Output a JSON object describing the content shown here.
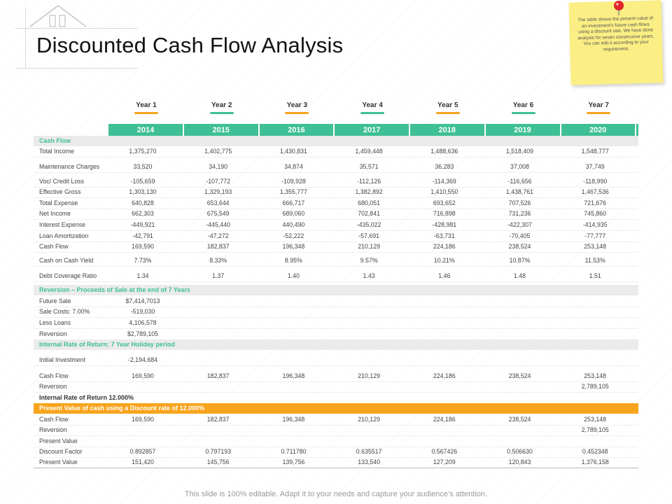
{
  "title": "Discounted Cash Flow Analysis",
  "note": "The table shows the present value of an investment's future cash flows using a discount rate. We have done analysis for seven consecutive years. You can edit it according to your requirement.",
  "accent": {
    "green": "#3ebf95",
    "orange": "#f7a41d",
    "teal": "#3ebf95"
  },
  "years": [
    {
      "label": "Year 1",
      "color": "#f7a41d"
    },
    {
      "label": "Year 2",
      "color": "#3ebf95"
    },
    {
      "label": "Year 3",
      "color": "#f7a41d"
    },
    {
      "label": "Year 4",
      "color": "#3ebf95"
    },
    {
      "label": "Year 5",
      "color": "#f7a41d"
    },
    {
      "label": "Year 6",
      "color": "#3ebf95"
    },
    {
      "label": "Year 7",
      "color": "#f7a41d"
    }
  ],
  "calendar_years": [
    "2014",
    "2015",
    "2016",
    "2017",
    "2018",
    "2019",
    "2020"
  ],
  "cash_flow_title": "Cash Flow",
  "cash_flow_rows": [
    {
      "label": "Total Income",
      "values": [
        "1,375,270",
        "1,402,775",
        "1,430,831",
        "1,459,448",
        "1,488,636",
        "1,518,409",
        "1,548,777"
      ]
    },
    {
      "label": "Maintenance Charges",
      "values": [
        "33,520",
        "34,190",
        "34,874",
        "35,571",
        "36,283",
        "37,008",
        "37,749"
      ]
    },
    {
      "label": "Voc/ Credit Loss",
      "values": [
        "-105,659",
        "-107,772",
        "-109,928",
        "-112,126",
        "-114,369",
        "-116,656",
        "-118,990"
      ]
    },
    {
      "label": "Effective Gross",
      "values": [
        "1,303,130",
        "1,329,193",
        "1,355,777",
        "1,382,892",
        "1,410,550",
        "1,438,761",
        "1,467,536"
      ]
    },
    {
      "label": "Total Expense",
      "values": [
        "640,828",
        "653,644",
        "666,717",
        "680,051",
        "693,652",
        "707,526",
        "721,676"
      ]
    },
    {
      "label": "Net Income",
      "values": [
        "662,303",
        "675,549",
        "689,060",
        "702,841",
        "716,898",
        "731,236",
        "745,860"
      ]
    },
    {
      "label": "Interest Expense",
      "values": [
        "-449,921",
        "-445,440",
        "440,490",
        "-435,022",
        "-428,981",
        "-422,307",
        "-414,935"
      ]
    },
    {
      "label": "Loan Amortization",
      "values": [
        "-42,791",
        "-47,272",
        "-52,222",
        "-57,691",
        "-63,731",
        "-70,405",
        "-77,777"
      ]
    },
    {
      "label": "Cash Flow",
      "values": [
        "169,590",
        "182,837",
        "196,348",
        "210,129",
        "224,186",
        "238,524",
        "253,148"
      ]
    },
    {
      "label": "Cash on Cash Yield",
      "values": [
        "7.73%",
        "8.33%",
        "8.95%",
        "9.57%",
        "10.21%",
        "10.87%",
        "11.53%"
      ]
    },
    {
      "label": "Debt Coverage Ratio",
      "values": [
        "1.34",
        "1.37",
        "1.40",
        "1.43",
        "1.46",
        "1.48",
        "1.51"
      ]
    }
  ],
  "reversion_title": "Reversion – Proceeds of Sale at the end of 7 Years",
  "reversion_rows": [
    {
      "label": "Future Sale",
      "value": "$7,414,7013"
    },
    {
      "label": "Sale Costs: 7.00%",
      "value": "-519,030"
    },
    {
      "label": "Less Loans",
      "value": "4,106,578"
    },
    {
      "label": "Reversion",
      "value": "$2,789,105"
    }
  ],
  "irr_title": "Internal Rate of Return: 7 Year Holiday period",
  "irr_rows": {
    "initial_label": "Initial Investment",
    "initial_value": "-2,194,684",
    "cash_flow_label": "Cash Flow",
    "cash_flow_values": [
      "169,590",
      "182,837",
      "196,348",
      "210,129",
      "224,186",
      "238,524",
      "253,148"
    ],
    "reversion_label": "Reversion",
    "reversion_value": "2,789,105",
    "irr_text": "Internal Rate of Return 12.000%"
  },
  "pv_title": "Present Value of cash using a Discount rate of 12.000%",
  "pv_rows": {
    "cash_flow_label": "Cash Flow",
    "cash_flow_values": [
      "169,590",
      "182,837",
      "196,348",
      "210,129",
      "224,186",
      "238,524",
      "253,148"
    ],
    "reversion_label": "Reversion",
    "reversion_value": "2,789,105",
    "present_value_header": "Present Value",
    "discount_label": "Discount Factor",
    "discount_values": [
      "0.892857",
      "0.797193",
      "0.711780",
      "0.635517",
      "0.567426",
      "0.506630",
      "0.452348"
    ],
    "pv_label": "Present Value",
    "pv_values": [
      "151,420",
      "145,756",
      "139,756",
      "133,540",
      "127,209",
      "120,843",
      "1,376,158"
    ]
  },
  "footer": "This slide is 100% editable. Adapt it to your needs and capture your audience’s attention."
}
